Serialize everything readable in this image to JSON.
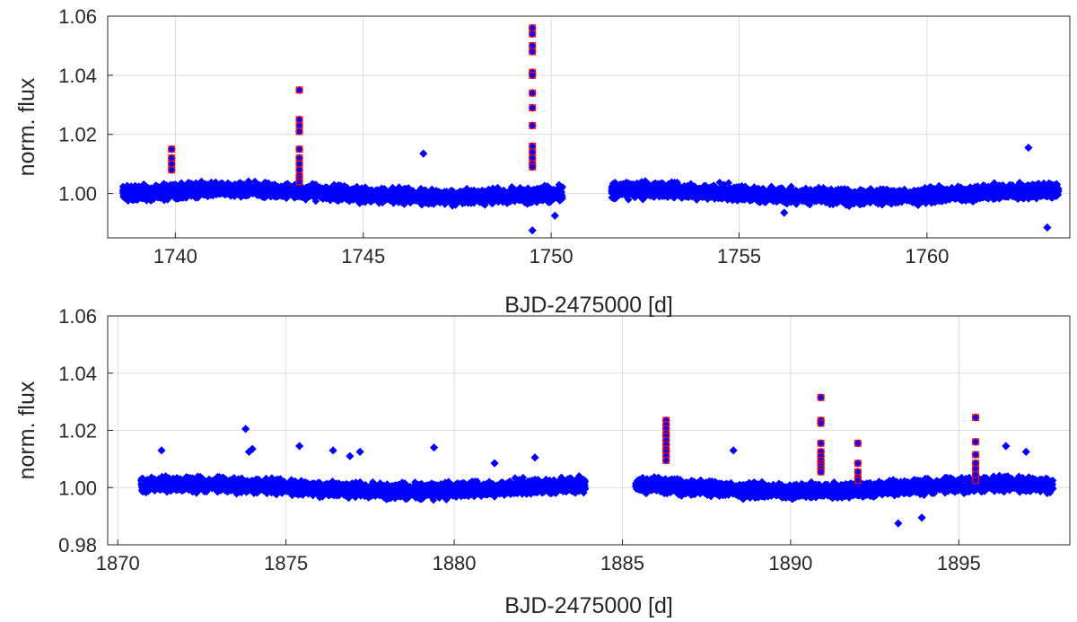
{
  "chart_data": [
    {
      "type": "scatter",
      "title": "",
      "xlabel": "BJD-2475000 [d]",
      "ylabel": "norm. flux",
      "xlim": [
        1738.2,
        1763.8
      ],
      "ylim": [
        0.985,
        1.06
      ],
      "xticks": [
        "1740",
        "1745",
        "1750",
        "1755",
        "1760"
      ],
      "yticks": [
        "1.00",
        "1.02",
        "1.04",
        "1.06"
      ],
      "grid": true,
      "colors": {
        "points": "#0000ff",
        "flares": "#ff0000"
      },
      "series": [
        {
          "marker": "diamond",
          "segments": [
            {
              "x_start": 1738.6,
              "x_end": 1750.3,
              "mean": 1.0,
              "spread": 0.0035
            },
            {
              "x_start": 1751.6,
              "x_end": 1763.5,
              "mean": 1.0,
              "spread": 0.0035
            }
          ],
          "outliers": [
            {
              "x": 1746.6,
              "y": 1.0135
            },
            {
              "x": 1749.5,
              "y": 0.9875
            },
            {
              "x": 1750.1,
              "y": 0.9925
            },
            {
              "x": 1763.2,
              "y": 0.9885
            },
            {
              "x": 1762.7,
              "y": 1.0155
            },
            {
              "x": 1756.2,
              "y": 0.9935
            }
          ]
        },
        {
          "marker": "square",
          "flares": [
            {
              "x": 1739.9,
              "y": [
                1.015,
                1.012,
                1.01,
                1.008
              ]
            },
            {
              "x": 1743.3,
              "y": [
                1.035,
                1.025,
                1.023,
                1.021,
                1.015,
                1.012,
                1.01,
                1.008,
                1.006,
                1.005,
                1.004
              ]
            },
            {
              "x": 1749.5,
              "y": [
                1.056,
                1.054,
                1.05,
                1.048,
                1.041,
                1.04,
                1.034,
                1.029,
                1.023,
                1.016,
                1.014,
                1.012,
                1.01,
                1.009
              ]
            }
          ]
        }
      ]
    },
    {
      "type": "scatter",
      "title": "",
      "xlabel": "BJD-2475000 [d]",
      "ylabel": "norm. flux",
      "xlim": [
        1869.7,
        1898.3
      ],
      "ylim": [
        0.98,
        1.06
      ],
      "xticks": [
        "1870",
        "1875",
        "1880",
        "1885",
        "1890",
        "1895"
      ],
      "yticks": [
        "0.98",
        "1.00",
        "1.02",
        "1.04",
        "1.06"
      ],
      "grid": true,
      "colors": {
        "points": "#0000ff",
        "flares": "#ff0000"
      },
      "series": [
        {
          "marker": "diamond",
          "segments": [
            {
              "x_start": 1870.7,
              "x_end": 1883.9,
              "mean": 1.0,
              "spread": 0.0035
            },
            {
              "x_start": 1885.4,
              "x_end": 1897.8,
              "mean": 1.0,
              "spread": 0.0035
            }
          ],
          "outliers": [
            {
              "x": 1873.8,
              "y": 1.0205
            },
            {
              "x": 1874.0,
              "y": 1.0135
            },
            {
              "x": 1873.9,
              "y": 1.0125
            },
            {
              "x": 1875.4,
              "y": 1.0145
            },
            {
              "x": 1876.4,
              "y": 1.013
            },
            {
              "x": 1876.9,
              "y": 1.011
            },
            {
              "x": 1877.2,
              "y": 1.0125
            },
            {
              "x": 1879.4,
              "y": 1.014
            },
            {
              "x": 1881.2,
              "y": 1.0085
            },
            {
              "x": 1882.4,
              "y": 1.0105
            },
            {
              "x": 1888.3,
              "y": 1.013
            },
            {
              "x": 1893.2,
              "y": 0.9875
            },
            {
              "x": 1893.9,
              "y": 0.9895
            },
            {
              "x": 1896.4,
              "y": 1.0145
            },
            {
              "x": 1897.0,
              "y": 1.0125
            },
            {
              "x": 1871.3,
              "y": 1.013
            }
          ]
        },
        {
          "marker": "square",
          "flares": [
            {
              "x": 1886.3,
              "y": [
                1.0235,
                1.022,
                1.0205,
                1.019,
                1.018,
                1.0165,
                1.015,
                1.0135,
                1.0125,
                1.011,
                1.0095
              ]
            },
            {
              "x": 1890.9,
              "y": [
                1.0315,
                1.0235,
                1.0225,
                1.0155,
                1.0125,
                1.011,
                1.0095,
                1.0085,
                1.0075,
                1.0065,
                1.0055
              ]
            },
            {
              "x": 1892.0,
              "y": [
                1.0155,
                1.0085,
                1.0055,
                1.0035,
                1.0025
              ]
            },
            {
              "x": 1895.5,
              "y": [
                1.0245,
                1.016,
                1.0115,
                1.0085,
                1.0065,
                1.0045,
                1.0025
              ]
            }
          ]
        }
      ]
    }
  ]
}
